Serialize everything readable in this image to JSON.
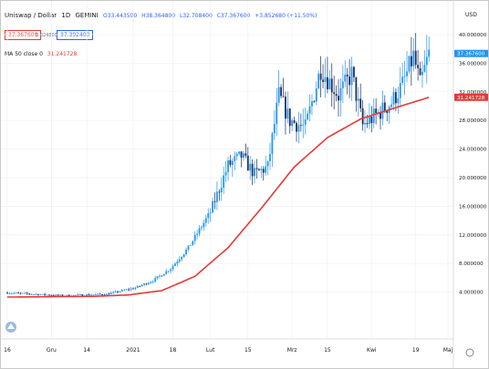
{
  "header": {
    "symbol": "Uniswap / Dollar",
    "interval": "1D",
    "exchange": "GEMINI",
    "ohlc_o": "O33.443500",
    "ohlc_h": "H38.364800",
    "ohlc_l": "L32.708400",
    "ohlc_c": "C37.367600",
    "change": "+3.852680 (+11.50%)",
    "bid": "37.367600",
    "spread": "0.024800",
    "ask": "37.392400",
    "ma_label": "MA 50 close 0",
    "ma_value": "31.241728",
    "currency": "USD"
  },
  "colors": {
    "up": "#2196f3",
    "down": "#1e2e5c",
    "ma": "#e53935",
    "grid": "#eef0f4",
    "accent": "#2962ff"
  },
  "chart_data": {
    "type": "candlestick",
    "y_axis_ticks": [
      4,
      8,
      12,
      16,
      20,
      24,
      28,
      32,
      36,
      40
    ],
    "y_tick_labels": [
      "4.000000",
      "8.000000",
      "12.000000",
      "16.000000",
      "20.000000",
      "24.000000",
      "28.000000",
      "32.000000",
      "36.000000",
      "40.000000"
    ],
    "ylim": [
      0.5,
      42.3
    ],
    "x_tick_labels": [
      "16",
      "Gru",
      "14",
      "2021",
      "18",
      "Lut",
      "15",
      "Mrz",
      "15",
      "Kwi",
      "19",
      "Maj"
    ],
    "price_label": "37.367600",
    "ma_label": "31.241728",
    "anchors": [
      {
        "i": 0,
        "p": 3.9
      },
      {
        "i": 25,
        "p": 3.5
      },
      {
        "i": 45,
        "p": 3.7
      },
      {
        "i": 58,
        "p": 4.6
      },
      {
        "i": 66,
        "p": 5.6
      },
      {
        "i": 74,
        "p": 7.3
      },
      {
        "i": 82,
        "p": 10.2
      },
      {
        "i": 92,
        "p": 15.2
      },
      {
        "i": 100,
        "p": 21.7
      },
      {
        "i": 106,
        "p": 23.0
      },
      {
        "i": 112,
        "p": 20.5
      },
      {
        "i": 118,
        "p": 21.5
      },
      {
        "i": 123,
        "p": 31.5
      },
      {
        "i": 128,
        "p": 28.0
      },
      {
        "i": 135,
        "p": 27.0
      },
      {
        "i": 142,
        "p": 35.3
      },
      {
        "i": 150,
        "p": 31.5
      },
      {
        "i": 156,
        "p": 34.5
      },
      {
        "i": 161,
        "p": 27.3
      },
      {
        "i": 168,
        "p": 29.0
      },
      {
        "i": 174,
        "p": 30.5
      },
      {
        "i": 179,
        "p": 33.0
      },
      {
        "i": 184,
        "p": 37.0
      },
      {
        "i": 187,
        "p": 33.0
      },
      {
        "i": 191,
        "p": 37.3
      }
    ],
    "ma_anchors": [
      {
        "i": 0,
        "p": 3.3
      },
      {
        "i": 40,
        "p": 3.4
      },
      {
        "i": 55,
        "p": 3.6
      },
      {
        "i": 70,
        "p": 4.2
      },
      {
        "i": 85,
        "p": 6.2
      },
      {
        "i": 100,
        "p": 10.2
      },
      {
        "i": 115,
        "p": 15.7
      },
      {
        "i": 130,
        "p": 21.5
      },
      {
        "i": 145,
        "p": 25.6
      },
      {
        "i": 160,
        "p": 28.2
      },
      {
        "i": 175,
        "p": 29.7
      },
      {
        "i": 191,
        "p": 31.24
      }
    ]
  }
}
